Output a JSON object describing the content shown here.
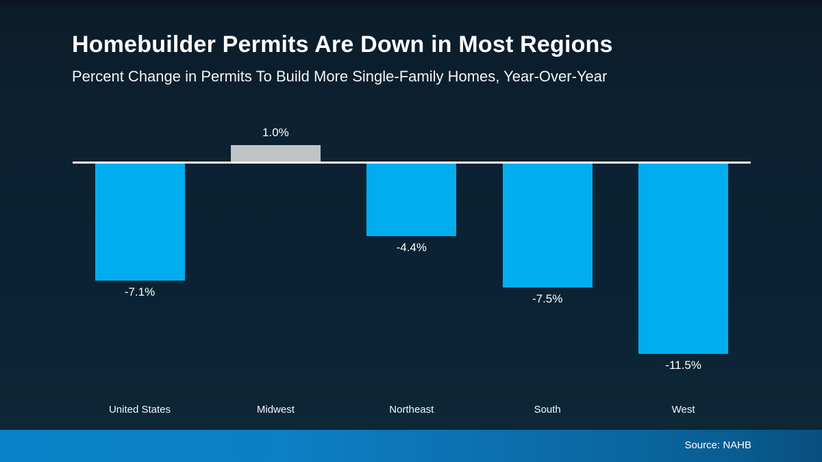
{
  "header": {
    "title": "Homebuilder Permits Are Down in Most Regions",
    "subtitle": "Percent Change in Permits To Build More Single-Family Homes, Year-Over-Year"
  },
  "footer": {
    "source_label": "Source: NAHB"
  },
  "colors": {
    "bar_negative": "#00AEEF",
    "bar_positive": "#C0C4C4",
    "zero_line": "#FFFFFF",
    "text": "#FFFFFF",
    "background_top": "#0A141E",
    "background_bottom": "#0E2939",
    "footer_gradient_left": "#0981C8",
    "footer_gradient_right": "#094F7E"
  },
  "chart_data": {
    "type": "bar",
    "title": "Homebuilder Permits Are Down in Most Regions",
    "subtitle": "Percent Change in Permits To Build More Single-Family Homes, Year-Over-Year",
    "categories": [
      "United States",
      "Midwest",
      "Northeast",
      "South",
      "West"
    ],
    "values": [
      -7.1,
      1.0,
      -4.4,
      -7.5,
      -11.5
    ],
    "value_labels": [
      "-7.1%",
      "1.0%",
      "-4.4%",
      "-7.5%",
      "-11.5%"
    ],
    "bar_colors": [
      "#00AEEF",
      "#C0C4C4",
      "#00AEEF",
      "#00AEEF",
      "#00AEEF"
    ],
    "xlabel": "",
    "ylabel": "",
    "ylim": [
      -12.5,
      2.0
    ],
    "grid": false,
    "legend": "none",
    "baseline": 0,
    "source": "Source: NAHB"
  }
}
